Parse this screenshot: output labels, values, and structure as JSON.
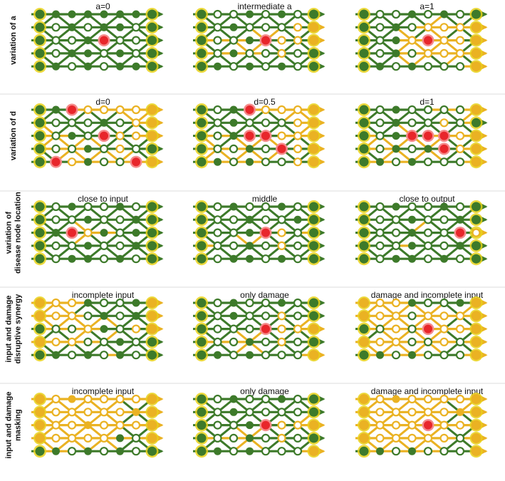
{
  "colors": {
    "green": "#3d7a2a",
    "green_light": "#4f8f3a",
    "orange": "#eab223",
    "node_halo": "#e9d21a",
    "damage_fill": "#e8262b",
    "damage_halo": "#f58a8a",
    "separator": "#dddddd"
  },
  "node_types": {
    "G": "filled green",
    "O": "hollow green",
    "Y": "filled orange",
    "H": "hollow orange",
    "R": "red damaged"
  },
  "edge_types": {
    "g": "green active",
    "o": "orange disrupted"
  },
  "rows": [
    {
      "label_lines": [
        "variation of a"
      ],
      "panels": [
        {
          "title": "a=0",
          "nodes": [
            "GGGGGGGG",
            "GOGOGGOG",
            "GOOGROOG",
            "GOGGOGOG",
            "GGOGOGGG"
          ],
          "edges": {
            "h": "gggggggggggggggggggggggggggggggggggg",
            "d": "gggggggggggggggggggggggggggggggggggggggggggggggggggggggg"
          }
        },
        {
          "title": "intermediate a",
          "nodes": [
            "GOOGOGOG",
            "GOGOOOHY",
            "GOOGRHHY",
            "GOGOOHOG",
            "GGOGOGOG"
          ],
          "edges": {
            "h": "ggggggggggggggoooggggoooogggggggggg",
            "d": "ggggggggggggggggggggooggggooogggggoogggggggggggggggggggg"
          }
        },
        {
          "title": "a=1",
          "nodes": [
            "GOOGOGOG",
            "GOGOHHHY",
            "GOGHRHHY",
            "GOGOHHHY",
            "GGOGOOOY"
          ],
          "edges": {
            "h": "ggggggggggooooggoooogggoooooggggggoo",
            "d": "gggggggggggoogggggooooooogggoooooggoooogggggoooggggggggg"
          }
        }
      ]
    },
    {
      "label_lines": [
        "variation of d"
      ],
      "panels": [
        {
          "title": "d=0",
          "nodes": [
            "GGRHHHHY",
            "GOOOGOHY",
            "GOGORHHY",
            "GOOGOHOG",
            "GRHGOORY"
          ],
          "edges": {
            "h": "ggoooooggggggoooggggooooggggggoooooo",
            "d": "ggoooogggggggoooggggooooggggoooogggggoooooggggoooooggggg"
          }
        },
        {
          "title": "d=0.5",
          "nodes": [
            "GOGRHHHY",
            "GOGOOOHY",
            "GOGRRHHY",
            "GOOGORHY",
            "GGOGOOHY"
          ],
          "edges": {
            "h": "gggooooggggggooogggoooooggggoooogggo",
            "d": "gggoooogggggggoogggoooooggggoooooggggoooogggggggoooggggg"
          }
        },
        {
          "title": "d=1",
          "nodes": [
            "GOGOOOOY",
            "GOGOOHOG",
            "GOGRRRHY",
            "GOGOGRHY",
            "GGOGOOOY"
          ],
          "edges": {
            "h": "ggggoooggggggoogggoooooggggoooogggoo",
            "d": "ggggoooggggggoogggoooooogggoooooggggooooogggggggoogggggg"
          }
        }
      ]
    },
    {
      "label_lines": [
        "variation of",
        "disease node location"
      ],
      "panels": [
        {
          "title": "close to input",
          "nodes": [
            "GOGOOGOG",
            "GOOGOOGG",
            "GGRHGOGG",
            "GOOGOOGG",
            "GOGGOGOG"
          ],
          "edges": {
            "h": "gggggggggggggggggoogggggggggggggggggg",
            "d": "gggggggggggggggggggoogggggggggggggggggggggggggggggggggg"
          }
        },
        {
          "title": "middle",
          "nodes": [
            "GOGOOGOG",
            "GOOGOOGG",
            "GOOGRHOG",
            "GOOGOHOG",
            "GOGGOGOG"
          ],
          "edges": {
            "h": "ggggggggggggggggggggoogggggggggggggg",
            "d": "ggggggggggggggggggggooggggggoogggggggggggggggggggggggggg"
          }
        },
        {
          "title": "close to output",
          "nodes": [
            "GOGOOGOG",
            "GOOGOOGG",
            "GOOGOORH",
            "GOOGOOGG",
            "GOGGOGOG"
          ],
          "edges": {
            "h": "gggggggggggggggggggggggogggggggggggg",
            "d": "ggggggggggggggggggggggggggooggggggggggggggggggggggggggggg"
          }
        }
      ]
    },
    {
      "label_lines": [
        "input and damage",
        "disruptive synergy"
      ],
      "panels": [
        {
          "title": "incomplete input",
          "nodes": [
            "YHHGOOGY",
            "YHHOGOGY",
            "GOOHGOHY",
            "YHHOOGOG",
            "GGOGOGOG"
          ],
          "edges": {
            "h": "oooggggoooggggoooogggoooogggggggoggg",
            "d": "oooogggggoooogggggooogggggoooggggoooogggggggggggggggggg"
          }
        },
        {
          "title": "only damage",
          "nodes": [
            "GOGOOGOG",
            "GOGOOHOG",
            "GOOORHHY",
            "GOOGOHOG",
            "GGOGOOOY"
          ],
          "edges": {
            "h": "ggggggggggggggggggggooooggggggggggoo",
            "d": "ggggggggggggggggggggooooggggooooggggggggggggggggggoooggg"
          }
        },
        {
          "title": "damage and incomplete input",
          "nodes": [
            "YHHGOOGY",
            "YHHOHHHY",
            "GOHORHHY",
            "YHHOOHOY",
            "GGOGOOOY"
          ],
          "edges": {
            "h": "oooggggoooooooooooooooooooooooooggoo",
            "d": "oooogggoooooooooooooooooooooooooooooooooggggggggoooggggg"
          }
        }
      ]
    },
    {
      "label_lines": [
        "input and damage",
        "masking"
      ],
      "panels": [
        {
          "title": "incomplete input",
          "nodes": [
            "YHYHHHHY",
            "YHHHHHYY",
            "YHHYHHHY",
            "YHHHHGOY",
            "GGOGOGOG"
          ],
          "edges": {
            "h": "oooooooooooooooooooooooooooooogggggg",
            "d": "ooooooooooooooooooooooooooooooooooooooooogggggggggggggg"
          }
        },
        {
          "title": "only damage",
          "nodes": [
            "GOGOOGOG",
            "GOGOOOOG",
            "GOOGRHHY",
            "GOOGOHOG",
            "GGOGOOOY"
          ],
          "edges": {
            "h": "ggggggggggggggggggggooooggggggggggoo",
            "d": "ggggggggggggggggggggooooggggooooggggggggggggggggggoooggg"
          }
        },
        {
          "title": "damage and incomplete input",
          "nodes": [
            "YHYHHHHY",
            "YHHHHHYY",
            "YHHHRHHY",
            "YHHHHHOY",
            "GGOGOOOY"
          ],
          "edges": {
            "h": "oooooooooooooooooooooooooooooooooggoo",
            "d": "ooooooooooooooooooooooooooooooooooooooooggggggggoooggggg"
          }
        }
      ]
    }
  ]
}
